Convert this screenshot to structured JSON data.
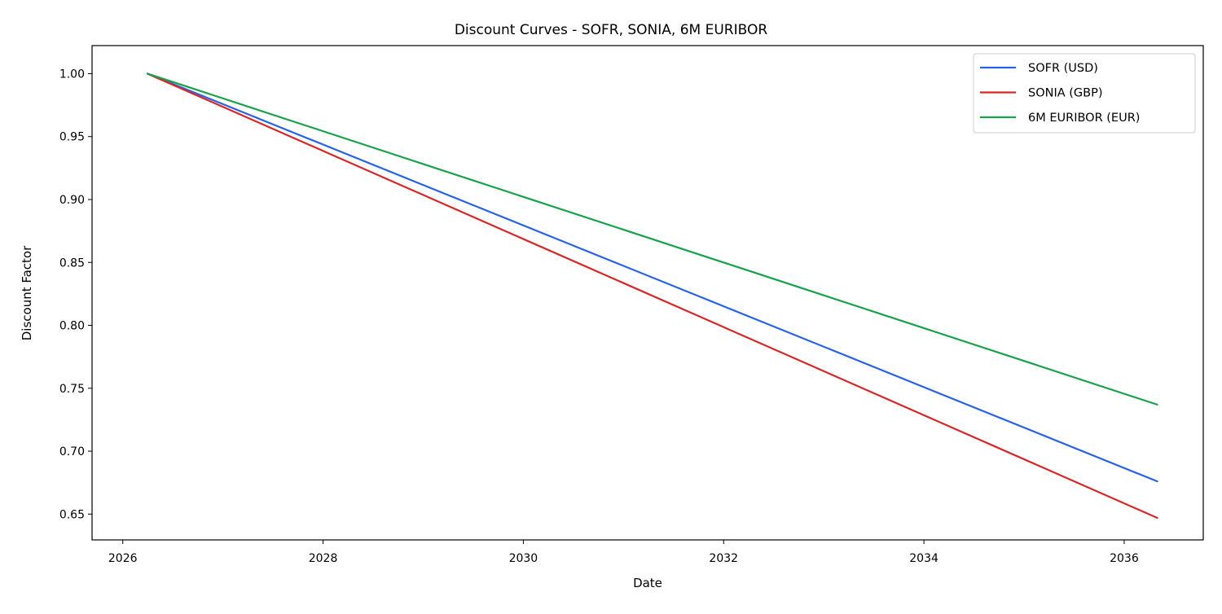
{
  "chart_data": {
    "type": "line",
    "title": "Discount Curves - SOFR, SONIA, 6M EURIBOR",
    "xlabel": "Date",
    "ylabel": "Discount Factor",
    "x_tick_labels": [
      "2026",
      "2028",
      "2030",
      "2032",
      "2034",
      "2036"
    ],
    "y_tick_labels": [
      "0.65",
      "0.70",
      "0.75",
      "0.80",
      "0.85",
      "0.90",
      "0.95",
      "1.00"
    ],
    "xlim": [
      "2025-09-11",
      "2036-10-16"
    ],
    "ylim": [
      0.6295,
      1.0223
    ],
    "grid": false,
    "legend_position": "top-right",
    "x": [
      "2026-04-01",
      "2036-05-01"
    ],
    "series": [
      {
        "name": "SOFR (USD)",
        "color": "#2563eb",
        "values": [
          1.0,
          0.676
        ]
      },
      {
        "name": "SONIA (GBP)",
        "color": "#dc2626",
        "values": [
          1.0,
          0.647
        ]
      },
      {
        "name": "6M EURIBOR (EUR)",
        "color": "#16a34a",
        "values": [
          1.0,
          0.737
        ]
      }
    ]
  }
}
